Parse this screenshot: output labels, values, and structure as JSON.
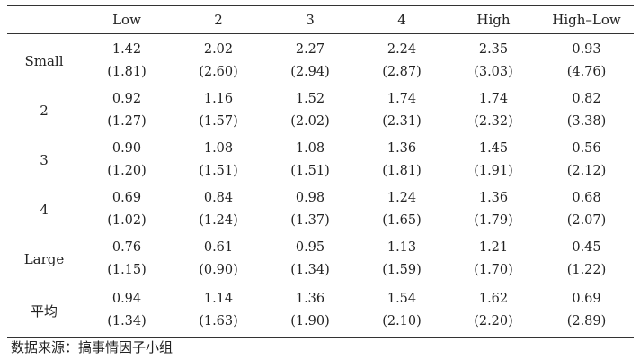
{
  "table": {
    "headers": [
      "",
      "Low",
      "2",
      "3",
      "4",
      "High",
      "High–Low"
    ],
    "rows": [
      {
        "label": "Small",
        "values": [
          "1.42",
          "2.02",
          "2.27",
          "2.24",
          "2.35",
          "0.93"
        ],
        "tstats": [
          "(1.81)",
          "(2.60)",
          "(2.94)",
          "(2.87)",
          "(3.03)",
          "(4.76)"
        ]
      },
      {
        "label": "2",
        "values": [
          "0.92",
          "1.16",
          "1.52",
          "1.74",
          "1.74",
          "0.82"
        ],
        "tstats": [
          "(1.27)",
          "(1.57)",
          "(2.02)",
          "(2.31)",
          "(2.32)",
          "(3.38)"
        ]
      },
      {
        "label": "3",
        "values": [
          "0.90",
          "1.08",
          "1.08",
          "1.36",
          "1.45",
          "0.56"
        ],
        "tstats": [
          "(1.20)",
          "(1.51)",
          "(1.51)",
          "(1.81)",
          "(1.91)",
          "(2.12)"
        ]
      },
      {
        "label": "4",
        "values": [
          "0.69",
          "0.84",
          "0.98",
          "1.24",
          "1.36",
          "0.68"
        ],
        "tstats": [
          "(1.02)",
          "(1.24)",
          "(1.37)",
          "(1.65)",
          "(1.79)",
          "(2.07)"
        ]
      },
      {
        "label": "Large",
        "values": [
          "0.76",
          "0.61",
          "0.95",
          "1.13",
          "1.21",
          "0.45"
        ],
        "tstats": [
          "(1.15)",
          "(0.90)",
          "(1.34)",
          "(1.59)",
          "(1.70)",
          "(1.22)"
        ]
      }
    ],
    "average": {
      "label": "平均",
      "values": [
        "0.94",
        "1.14",
        "1.36",
        "1.54",
        "1.62",
        "0.69"
      ],
      "tstats": [
        "(1.34)",
        "(1.63)",
        "(1.90)",
        "(2.10)",
        "(2.20)",
        "(2.89)"
      ]
    }
  },
  "source": "数据来源：搞事情因子小组"
}
